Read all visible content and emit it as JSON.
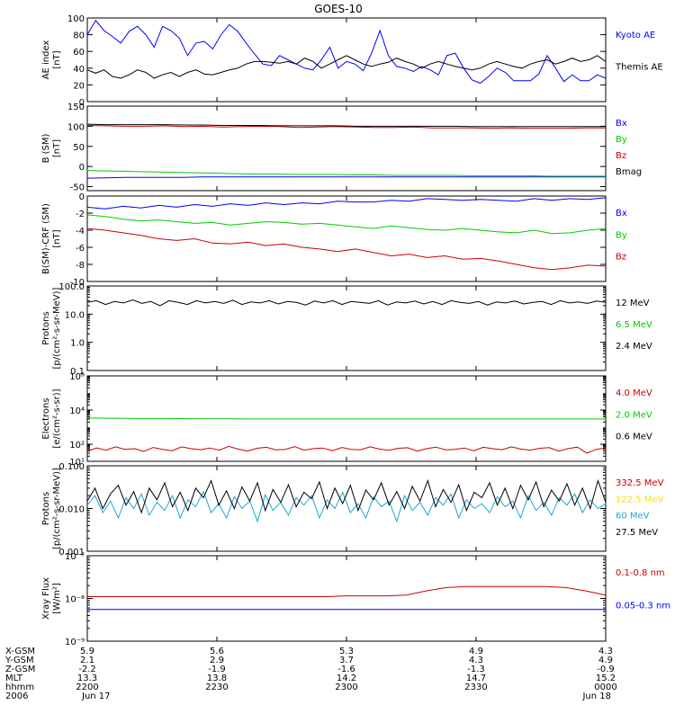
{
  "title": "GOES-10",
  "chart_data": [
    {
      "type": "line",
      "ylabel": [
        "AE index",
        "[nT]"
      ],
      "ylim": [
        0,
        100
      ],
      "yscale": "linear",
      "yticks": [
        0,
        20,
        40,
        60,
        80,
        100
      ],
      "ytick_labels": [
        "0",
        "20",
        "40",
        "60",
        "80",
        "100"
      ],
      "series": [
        {
          "name": "Kyoto AE",
          "color": "#0000ff",
          "values": [
            80,
            97,
            85,
            78,
            70,
            84,
            90,
            80,
            65,
            90,
            85,
            76,
            55,
            70,
            72,
            63,
            80,
            92,
            84,
            70,
            57,
            45,
            43,
            55,
            50,
            45,
            40,
            38,
            50,
            65,
            40,
            48,
            45,
            37,
            58,
            85,
            55,
            42,
            40,
            36,
            42,
            38,
            32,
            55,
            58,
            40,
            26,
            22,
            30,
            40,
            35,
            25,
            25,
            25,
            33,
            55,
            40,
            24,
            32,
            25,
            25,
            32,
            28
          ]
        },
        {
          "name": "Themis AE",
          "color": "#000000",
          "values": [
            38,
            34,
            38,
            30,
            28,
            32,
            38,
            35,
            28,
            32,
            35,
            30,
            35,
            38,
            33,
            32,
            35,
            38,
            40,
            45,
            48,
            48,
            47,
            46,
            48,
            45,
            52,
            48,
            40,
            45,
            50,
            55,
            50,
            45,
            42,
            45,
            47,
            52,
            48,
            45,
            40,
            45,
            48,
            45,
            42,
            40,
            38,
            40,
            45,
            48,
            45,
            42,
            40,
            45,
            48,
            50,
            45,
            48,
            52,
            48,
            50,
            55,
            48
          ]
        }
      ]
    },
    {
      "type": "line",
      "ylabel": [
        "B (SM)",
        "[nT]"
      ],
      "ylim": [
        -60,
        150
      ],
      "yscale": "linear",
      "yticks": [
        -50,
        0,
        50,
        100,
        150
      ],
      "ytick_labels": [
        "-50",
        "0",
        "50",
        "100",
        "150"
      ],
      "series": [
        {
          "name": "Bx",
          "color": "#0000ff",
          "values": [
            -29,
            -28,
            -27,
            -27,
            -27,
            -27,
            -26,
            -26,
            -26,
            -26,
            -26,
            -26,
            -26,
            -26,
            -26,
            -26,
            -26,
            -26,
            -26,
            -26,
            -26,
            -26,
            -26,
            -26,
            -26,
            -26,
            -26,
            -26
          ]
        },
        {
          "name": "By",
          "color": "#00cc00",
          "values": [
            -10,
            -11,
            -12,
            -13,
            -14,
            -15,
            -16,
            -17,
            -18,
            -19,
            -19,
            -20,
            -20,
            -20,
            -21,
            -21,
            -22,
            -22,
            -22,
            -22,
            -23,
            -23,
            -23,
            -23,
            -24,
            -24,
            -24,
            -24
          ]
        },
        {
          "name": "Bz",
          "color": "#cc0000",
          "values": [
            102,
            101,
            100,
            100,
            101,
            99,
            100,
            98,
            99,
            100,
            99,
            97,
            98,
            99,
            98,
            97,
            97,
            98,
            96,
            96,
            96,
            95,
            96,
            95,
            95,
            95,
            96,
            96
          ]
        },
        {
          "name": "Bmag",
          "color": "#000000",
          "values": [
            105,
            104,
            104,
            104,
            104,
            103,
            103,
            102,
            102,
            102,
            101,
            101,
            101,
            101,
            100,
            100,
            100,
            100,
            100,
            100,
            99,
            99,
            99,
            99,
            99,
            99,
            99,
            99
          ]
        }
      ]
    },
    {
      "type": "line",
      "ylabel": [
        "B(SM)-CRF (SM)",
        "[nT]"
      ],
      "ylim": [
        -10,
        0
      ],
      "yscale": "linear",
      "yticks": [
        -10,
        -8,
        -6,
        -4,
        -2,
        0
      ],
      "ytick_labels": [
        "-10",
        "-8",
        "-6",
        "-4",
        "-2",
        "0"
      ],
      "series": [
        {
          "name": "Bx",
          "color": "#0000ff",
          "values": [
            -1.3,
            -1.5,
            -1.2,
            -1.4,
            -1.1,
            -1.3,
            -1.0,
            -1.2,
            -0.9,
            -1.1,
            -0.8,
            -1.0,
            -0.8,
            -0.9,
            -0.6,
            -0.7,
            -0.7,
            -0.5,
            -0.6,
            -0.3,
            -0.4,
            -0.5,
            -0.4,
            -0.5,
            -0.6,
            -0.3,
            -0.5,
            -0.3,
            -0.4,
            -0.2
          ]
        },
        {
          "name": "By",
          "color": "#00cc00",
          "values": [
            -2.2,
            -2.4,
            -2.7,
            -2.9,
            -2.8,
            -3.0,
            -3.2,
            -3.1,
            -3.4,
            -3.2,
            -3.0,
            -3.1,
            -3.3,
            -3.2,
            -3.4,
            -3.6,
            -3.8,
            -3.5,
            -3.7,
            -3.9,
            -4.0,
            -3.8,
            -4.0,
            -4.2,
            -4.3,
            -4.0,
            -4.4,
            -4.3,
            -4.0,
            -3.8
          ]
        },
        {
          "name": "Bz",
          "color": "#cc0000",
          "values": [
            -3.8,
            -4.0,
            -4.3,
            -4.6,
            -5.0,
            -5.2,
            -5.0,
            -5.5,
            -5.6,
            -5.4,
            -5.8,
            -5.6,
            -6.0,
            -6.2,
            -6.5,
            -6.2,
            -6.6,
            -7.0,
            -6.8,
            -7.2,
            -7.0,
            -7.4,
            -7.3,
            -7.6,
            -8.0,
            -8.4,
            -8.6,
            -8.4,
            -8.1,
            -8.2
          ]
        }
      ]
    },
    {
      "type": "line",
      "ylabel": [
        "Protons",
        "[p/(cm²-s-sr-MeV)]"
      ],
      "ylim": [
        0.1,
        100
      ],
      "yscale": "log",
      "yticks": [
        0.1,
        1.0,
        10.0,
        100.0
      ],
      "ytick_labels": [
        "0.1",
        "1.0",
        "10.0",
        "100.0"
      ],
      "series": [
        {
          "name": "12 MeV",
          "color": "#000000",
          "values": [
            26,
            30,
            22,
            28,
            25,
            32,
            24,
            28,
            20,
            30,
            26,
            22,
            30,
            25,
            28,
            24,
            31,
            22,
            27,
            25,
            30,
            23,
            28,
            26,
            21,
            29,
            25,
            30,
            22,
            28,
            26,
            24,
            30,
            21,
            27,
            25,
            29,
            23,
            28,
            22,
            30,
            26,
            24,
            28,
            21,
            27,
            25,
            29,
            23,
            26,
            28,
            22,
            30,
            25,
            27,
            24,
            29,
            26
          ]
        },
        {
          "name": "6.5 MeV",
          "color": "#00cc00",
          "values": []
        },
        {
          "name": "2.4 MeV",
          "color": "#000000",
          "values": []
        }
      ]
    },
    {
      "type": "line",
      "ylabel": [
        "Electrons",
        "[e/(cm²-s-sr)]"
      ],
      "ylim": [
        10,
        1000000
      ],
      "yscale": "log",
      "yticks": [
        10,
        100,
        10000,
        1000000
      ],
      "ytick_labels": [
        "10¹",
        "10²",
        "10⁴",
        "10⁶"
      ],
      "series": [
        {
          "name": "4.0 MeV",
          "color": "#cc0000",
          "values": [
            40,
            60,
            45,
            70,
            50,
            55,
            38,
            65,
            50,
            42,
            70,
            55,
            48,
            60,
            45,
            75,
            52,
            40,
            58,
            66,
            47,
            50,
            72,
            45,
            55,
            60,
            42,
            65,
            50,
            48,
            70,
            52,
            44,
            58,
            62,
            40,
            55,
            68,
            47,
            50,
            60,
            42,
            66,
            55,
            48,
            70,
            52,
            45,
            58,
            63,
            40,
            55,
            68,
            30,
            50,
            60
          ]
        },
        {
          "name": "2.0 MeV",
          "color": "#00cc00",
          "values": [
            3400,
            3300,
            3200,
            3200,
            3100,
            3100,
            3000,
            3000,
            3000,
            3000,
            3000,
            3000,
            3000,
            3000,
            3000,
            3000,
            3000,
            3000,
            3000,
            3000
          ]
        },
        {
          "name": "0.6 MeV",
          "color": "#000000",
          "values": []
        }
      ]
    },
    {
      "type": "line",
      "ylabel": [
        "Protons",
        "[p/(cm²-s-sr-MeV)]"
      ],
      "ylim": [
        0.001,
        0.1
      ],
      "yscale": "log",
      "yticks": [
        0.001,
        0.01,
        0.1
      ],
      "ytick_labels": [
        "0.001",
        "0.010",
        "0.100"
      ],
      "series": [
        {
          "name": "332.5 MeV",
          "color": "#cc0000",
          "values": []
        },
        {
          "name": "122.5 MeV",
          "color": "#ffdd00",
          "values": []
        },
        {
          "name": "60 MeV",
          "color": "#1ea6d6",
          "values": [
            0.012,
            0.02,
            0.008,
            0.015,
            0.006,
            0.018,
            0.01,
            0.022,
            0.007,
            0.014,
            0.009,
            0.02,
            0.006,
            0.016,
            0.011,
            0.025,
            0.008,
            0.013,
            0.006,
            0.019,
            0.01,
            0.015,
            0.005,
            0.021,
            0.009,
            0.014,
            0.007,
            0.018,
            0.012,
            0.02,
            0.006,
            0.016,
            0.01,
            0.024,
            0.008,
            0.013,
            0.006,
            0.019,
            0.011,
            0.015,
            0.005,
            0.02,
            0.009,
            0.014,
            0.007,
            0.018,
            0.012,
            0.022,
            0.006,
            0.016,
            0.01,
            0.013,
            0.008,
            0.019,
            0.011,
            0.015,
            0.006,
            0.02,
            0.009,
            0.014,
            0.007,
            0.018,
            0.012,
            0.022,
            0.008,
            0.016,
            0.01,
            0.013
          ]
        },
        {
          "name": "27.5 MeV",
          "color": "#000000",
          "values": [
            0.015,
            0.03,
            0.01,
            0.022,
            0.035,
            0.012,
            0.025,
            0.008,
            0.03,
            0.016,
            0.04,
            0.011,
            0.024,
            0.009,
            0.03,
            0.018,
            0.045,
            0.012,
            0.026,
            0.01,
            0.032,
            0.015,
            0.04,
            0.009,
            0.028,
            0.014,
            0.036,
            0.011,
            0.024,
            0.017,
            0.042,
            0.01,
            0.03,
            0.013,
            0.035,
            0.009,
            0.027,
            0.016,
            0.04,
            0.012,
            0.025,
            0.01,
            0.033,
            0.015,
            0.045,
            0.011,
            0.028,
            0.014,
            0.036,
            0.009,
            0.024,
            0.018,
            0.04,
            0.012,
            0.03,
            0.01,
            0.035,
            0.016,
            0.042,
            0.011,
            0.027,
            0.015,
            0.038,
            0.012,
            0.03,
            0.01,
            0.045,
            0.014
          ]
        }
      ]
    },
    {
      "type": "line",
      "ylabel": [
        "Xray Flux",
        "[W/m²]"
      ],
      "ylim": [
        1e-09,
        1e-07
      ],
      "yscale": "log",
      "yticks": [
        1e-09,
        1e-08,
        1e-07
      ],
      "ytick_labels": [
        "10⁻⁹",
        "10⁻⁸",
        "10⁻⁷"
      ],
      "series": [
        {
          "name": "0.1-0.8 nm",
          "color": "#cc0000",
          "values": [
            1.1e-08,
            1.1e-08,
            1.1e-08,
            1.1e-08,
            1.1e-08,
            1.1e-08,
            1.1e-08,
            1.1e-08,
            1.1e-08,
            1.1e-08,
            1.1e-08,
            1.1e-08,
            1.1e-08,
            1.15e-08,
            1.15e-08,
            1.15e-08,
            1.2e-08,
            1.5e-08,
            1.8e-08,
            1.9e-08,
            1.9e-08,
            1.9e-08,
            1.9e-08,
            1.9e-08,
            1.8e-08,
            1.5e-08,
            1.2e-08
          ]
        },
        {
          "name": "0.05-0.3 nm",
          "color": "#0000ff",
          "values": [
            5.5e-09,
            5.5e-09,
            5.5e-09,
            5.5e-09,
            5.5e-09,
            5.5e-09,
            5.5e-09,
            5.5e-09,
            5.5e-09,
            5.5e-09,
            5.5e-09,
            5.5e-09,
            5.5e-09,
            5.5e-09,
            5.5e-09,
            5.5e-09,
            5.5e-09,
            5.5e-09,
            5.5e-09,
            5.5e-09,
            5.5e-09,
            5.5e-09,
            5.5e-09,
            5.5e-09,
            5.5e-09,
            5.5e-09,
            5.5e-09
          ]
        }
      ]
    }
  ],
  "x_axis": {
    "row_labels": [
      "X-GSM",
      "Y-GSM",
      "Z-GSM",
      "MLT",
      "hhmm",
      "2006"
    ],
    "columns": [
      [
        "5.9",
        "2.1",
        "-2.2",
        "13.3",
        "2200",
        "Jun 17"
      ],
      [
        "5.6",
        "2.9",
        "-1.9",
        "13.8",
        "2230",
        ""
      ],
      [
        "5.3",
        "3.7",
        "-1.6",
        "14.2",
        "2300",
        ""
      ],
      [
        "4.9",
        "4.3",
        "-1.3",
        "14.7",
        "2330",
        ""
      ],
      [
        "4.3",
        "4.9",
        "-0.9",
        "15.2",
        "0000",
        "Jun 18"
      ]
    ]
  }
}
